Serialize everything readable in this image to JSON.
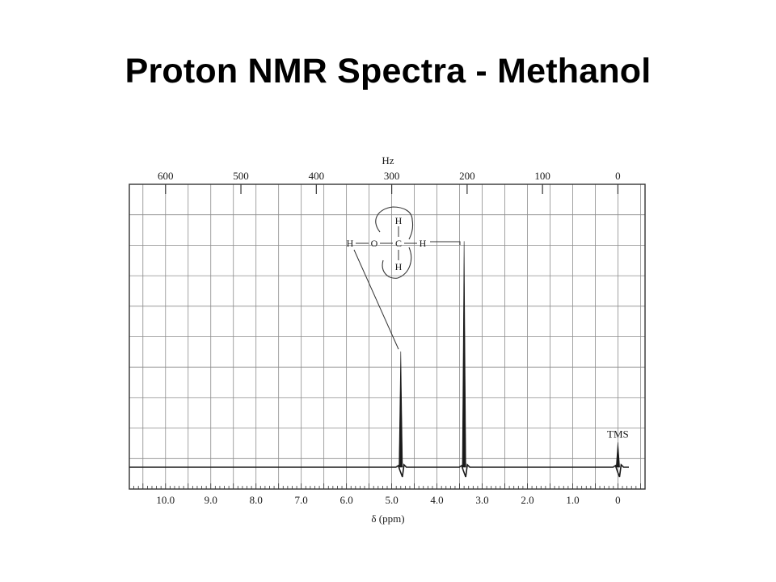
{
  "slide": {
    "title": "Proton NMR Spectra - Methanol"
  },
  "chart_data": {
    "type": "line",
    "x_axis": {
      "label": "δ (ppm)",
      "range": [
        10.8,
        -0.6
      ],
      "ticks": [
        "10.0",
        "9.0",
        "8.0",
        "7.0",
        "6.0",
        "5.0",
        "4.0",
        "3.0",
        "2.0",
        "1.0",
        "0"
      ],
      "tick_values": [
        10,
        9,
        8,
        7,
        6,
        5,
        4,
        3,
        2,
        1,
        0
      ]
    },
    "top_axis": {
      "label": "Hz",
      "ticks": [
        "600",
        "500",
        "400",
        "300",
        "200",
        "100",
        "0"
      ],
      "tick_values": [
        600,
        500,
        400,
        300,
        200,
        100,
        0
      ]
    },
    "grid": true,
    "peaks": [
      {
        "ppm": 4.8,
        "relative_height": 0.42,
        "assignment": "O-H"
      },
      {
        "ppm": 3.4,
        "relative_height": 0.82,
        "assignment": "C-H3"
      },
      {
        "ppm": 0.0,
        "relative_height": 0.09,
        "label": "TMS"
      }
    ],
    "structure": {
      "h_top": "H",
      "h_left": "H",
      "o": "O",
      "c": "C",
      "h_right": "H",
      "h_bottom": "H"
    }
  }
}
